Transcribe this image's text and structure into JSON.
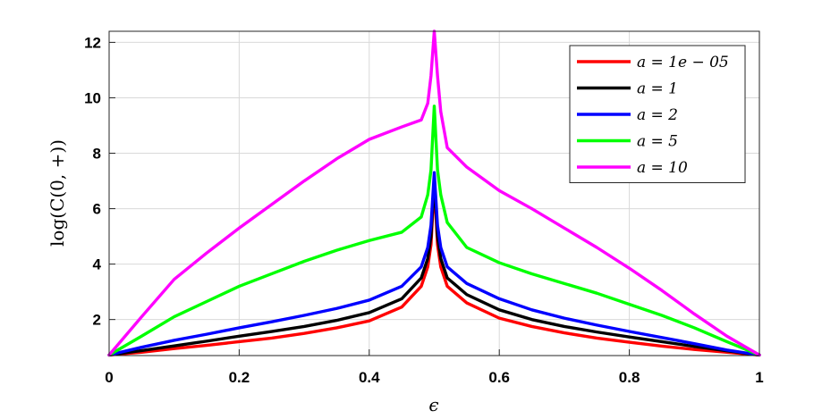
{
  "chart_data": {
    "type": "line",
    "xlabel": "ϵ",
    "ylabel": "log(C(0, +))",
    "xlim": [
      0,
      1
    ],
    "ylim": [
      0.7,
      12.4
    ],
    "xticks": [
      0,
      0.2,
      0.4,
      0.6,
      0.8,
      1
    ],
    "xtick_labels": [
      "0",
      "0.2",
      "0.4",
      "0.6",
      "0.8",
      "1"
    ],
    "yticks": [
      2,
      4,
      6,
      8,
      10,
      12
    ],
    "ytick_labels": [
      "2",
      "4",
      "6",
      "8",
      "10",
      "12"
    ],
    "grid": true,
    "legend_position": "top-right",
    "series": [
      {
        "name": "a = 1e − 05",
        "color": "#ff0000",
        "x": [
          0,
          0.05,
          0.1,
          0.15,
          0.2,
          0.25,
          0.3,
          0.35,
          0.4,
          0.45,
          0.48,
          0.49,
          0.495,
          0.5,
          0.505,
          0.51,
          0.52,
          0.55,
          0.6,
          0.65,
          0.7,
          0.75,
          0.8,
          0.85,
          0.9,
          0.95,
          1
        ],
        "y": [
          0.72,
          0.82,
          0.95,
          1.07,
          1.2,
          1.33,
          1.5,
          1.7,
          1.95,
          2.45,
          3.2,
          3.9,
          4.7,
          6.9,
          4.7,
          3.9,
          3.2,
          2.6,
          2.05,
          1.75,
          1.52,
          1.33,
          1.18,
          1.04,
          0.92,
          0.82,
          0.72
        ]
      },
      {
        "name": "a = 1",
        "color": "#000000",
        "x": [
          0,
          0.05,
          0.1,
          0.15,
          0.2,
          0.25,
          0.3,
          0.35,
          0.4,
          0.45,
          0.48,
          0.49,
          0.495,
          0.5,
          0.505,
          0.51,
          0.52,
          0.55,
          0.6,
          0.65,
          0.7,
          0.75,
          0.8,
          0.85,
          0.9,
          0.95,
          1
        ],
        "y": [
          0.72,
          0.88,
          1.05,
          1.22,
          1.4,
          1.57,
          1.75,
          1.97,
          2.25,
          2.75,
          3.5,
          4.2,
          5.0,
          7.0,
          5.0,
          4.2,
          3.5,
          2.9,
          2.35,
          2.0,
          1.75,
          1.55,
          1.37,
          1.2,
          1.03,
          0.87,
          0.72
        ]
      },
      {
        "name": "a = 2",
        "color": "#0000ff",
        "x": [
          0,
          0.05,
          0.1,
          0.15,
          0.2,
          0.25,
          0.3,
          0.35,
          0.4,
          0.45,
          0.48,
          0.49,
          0.495,
          0.5,
          0.505,
          0.51,
          0.52,
          0.55,
          0.6,
          0.65,
          0.7,
          0.75,
          0.8,
          0.85,
          0.9,
          0.95,
          1
        ],
        "y": [
          0.72,
          1.0,
          1.25,
          1.47,
          1.7,
          1.92,
          2.15,
          2.4,
          2.7,
          3.2,
          3.9,
          4.6,
          5.4,
          7.3,
          5.4,
          4.6,
          3.9,
          3.3,
          2.75,
          2.35,
          2.05,
          1.8,
          1.57,
          1.35,
          1.13,
          0.9,
          0.72
        ]
      },
      {
        "name": "a = 5",
        "color": "#00ff00",
        "x": [
          0,
          0.05,
          0.1,
          0.15,
          0.2,
          0.25,
          0.3,
          0.35,
          0.4,
          0.45,
          0.48,
          0.49,
          0.495,
          0.5,
          0.505,
          0.51,
          0.52,
          0.55,
          0.6,
          0.65,
          0.7,
          0.75,
          0.8,
          0.85,
          0.9,
          0.95,
          1
        ],
        "y": [
          0.72,
          1.4,
          2.1,
          2.65,
          3.2,
          3.65,
          4.1,
          4.5,
          4.85,
          5.15,
          5.7,
          6.5,
          7.4,
          9.7,
          7.4,
          6.5,
          5.5,
          4.6,
          4.05,
          3.65,
          3.3,
          2.95,
          2.55,
          2.15,
          1.7,
          1.2,
          0.72
        ]
      },
      {
        "name": "a = 10",
        "color": "#ff00ff",
        "x": [
          0,
          0.05,
          0.1,
          0.15,
          0.2,
          0.25,
          0.3,
          0.35,
          0.4,
          0.45,
          0.48,
          0.49,
          0.495,
          0.5,
          0.505,
          0.51,
          0.52,
          0.55,
          0.6,
          0.65,
          0.7,
          0.75,
          0.8,
          0.85,
          0.9,
          0.95,
          1
        ],
        "y": [
          0.72,
          2.1,
          3.45,
          4.4,
          5.3,
          6.15,
          7.0,
          7.8,
          8.5,
          8.95,
          9.2,
          9.8,
          10.8,
          12.4,
          10.8,
          9.5,
          8.2,
          7.5,
          6.65,
          6.0,
          5.3,
          4.6,
          3.85,
          3.05,
          2.2,
          1.4,
          0.72
        ]
      }
    ]
  }
}
